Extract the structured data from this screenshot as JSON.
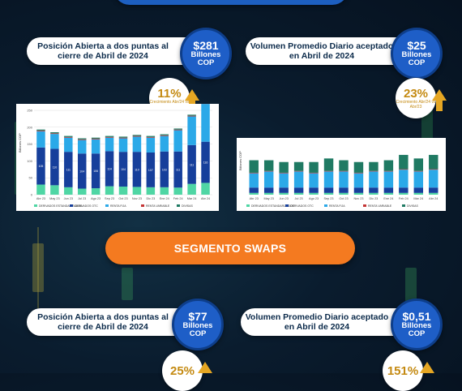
{
  "cards": [
    {
      "label": "Posición Abierta a dos puntas al cierre de Abril de 2024",
      "amount": "$281",
      "unit": "Billones",
      "currency": "COP"
    },
    {
      "label": "Volumen Promedio Diario aceptado en Abril de 2024",
      "amount": "$25",
      "unit": "Billones",
      "currency": "COP"
    },
    {
      "label": "Posición Abierta a dos puntas al cierre de Abril de 2024",
      "amount": "$77",
      "unit": "Billones",
      "currency": "COP"
    },
    {
      "label": "Volumen Promedio Diario aceptado en Abril de 2024",
      "amount": "$0,51",
      "unit": "Billones",
      "currency": "COP"
    }
  ],
  "badges": [
    {
      "pct": "11%",
      "caption": "Crecimiento Abr/24 vs Abr/23"
    },
    {
      "pct": "23%",
      "caption": "Crecimiento Abr/24 vs Abr/23"
    },
    {
      "pct": "25%",
      "caption": ""
    },
    {
      "pct": "151%",
      "caption": ""
    }
  ],
  "segment_label": "SEGMENTO SWAPS",
  "colors": {
    "derivados_estandarizados": "#4fd6a4",
    "derivados_otc": "#163f9b",
    "renta_fija": "#2ba9e8",
    "renta_variable": "#c43535",
    "divisas": "#1f7a63"
  },
  "chart_data": [
    {
      "type": "bar",
      "stacked": true,
      "ylabel": "Billones COP",
      "ylim": [
        0,
        250
      ],
      "yticks": [
        0,
        50,
        100,
        150,
        200,
        250
      ],
      "categories": [
        "Abr 23",
        "May 23",
        "Jun 23",
        "Jul 23",
        "Ago 23",
        "Sep 23",
        "Oct 23",
        "Nov 23",
        "Dic 23",
        "Ene 24",
        "Feb 24",
        "Mar 24",
        "Abr 24"
      ],
      "series": [
        {
          "name": "DERIVADOS ESTANDARIZADOS",
          "values": [
            30,
            28,
            22,
            18,
            19,
            25,
            24,
            23,
            22,
            22,
            21,
            32,
            35
          ]
        },
        {
          "name": "DERIVADOS OTC",
          "values": [
            110,
            108,
            105,
            104,
            103,
            104,
            103,
            104,
            103,
            106,
            107,
            115,
            122
          ]
        },
        {
          "name": "RENTA FIJA",
          "values": [
            48,
            44,
            42,
            40,
            42,
            40,
            40,
            45,
            44,
            46,
            63,
            85,
            112
          ]
        },
        {
          "name": "RENTA VARIABLE",
          "values": [
            2,
            2,
            2,
            2,
            2,
            2,
            2,
            2,
            2,
            2,
            2,
            2,
            2
          ]
        },
        {
          "name": "DIVISAS",
          "values": [
            3,
            3,
            3,
            3,
            3,
            3,
            3,
            3,
            3,
            3,
            3,
            3,
            3
          ]
        }
      ],
      "bar_labels": [
        "105",
        "110",
        "111",
        "104",
        "106",
        "114",
        "104",
        "110",
        "107",
        "103",
        "111",
        "111",
        "116"
      ],
      "legend_position": "bottom"
    },
    {
      "type": "bar",
      "stacked": true,
      "ylabel": "Billones COP",
      "categories": [
        "Abr 23",
        "May 23",
        "Jun 23",
        "Jul 23",
        "Ago 23",
        "Sep 23",
        "Oct 23",
        "Nov 23",
        "Dic 23",
        "Ene 24",
        "Feb 24",
        "Mar 24",
        "Abr 24"
      ],
      "series": [
        {
          "name": "DERIVADOS ESTANDARIZADOS",
          "values": [
            1,
            1,
            1,
            1,
            1,
            1,
            1,
            1,
            1,
            1,
            1,
            1,
            1
          ]
        },
        {
          "name": "DERIVADOS OTC",
          "values": [
            3,
            3,
            3,
            3,
            3,
            3,
            3,
            3,
            3,
            3,
            3,
            3,
            3
          ]
        },
        {
          "name": "RENTA FIJA",
          "values": [
            8,
            9,
            8,
            9,
            8,
            9,
            9,
            8,
            9,
            9,
            10,
            9,
            10
          ]
        },
        {
          "name": "RENTA VARIABLE",
          "values": [
            0.3,
            0.3,
            0.3,
            0.3,
            0.3,
            0.3,
            0.3,
            0.3,
            0.3,
            0.3,
            0.3,
            0.3,
            0.3
          ]
        },
        {
          "name": "DIVISAS",
          "values": [
            7,
            6,
            6,
            5,
            6,
            7,
            6,
            6,
            5,
            6,
            8,
            7,
            8
          ]
        }
      ],
      "bar_labels": [
        "",
        "",
        "",
        "",
        "",
        "",
        "",
        "",
        "",
        "",
        "",
        "",
        ""
      ],
      "ylim": [
        0,
        30
      ],
      "legend_position": "bottom"
    }
  ]
}
